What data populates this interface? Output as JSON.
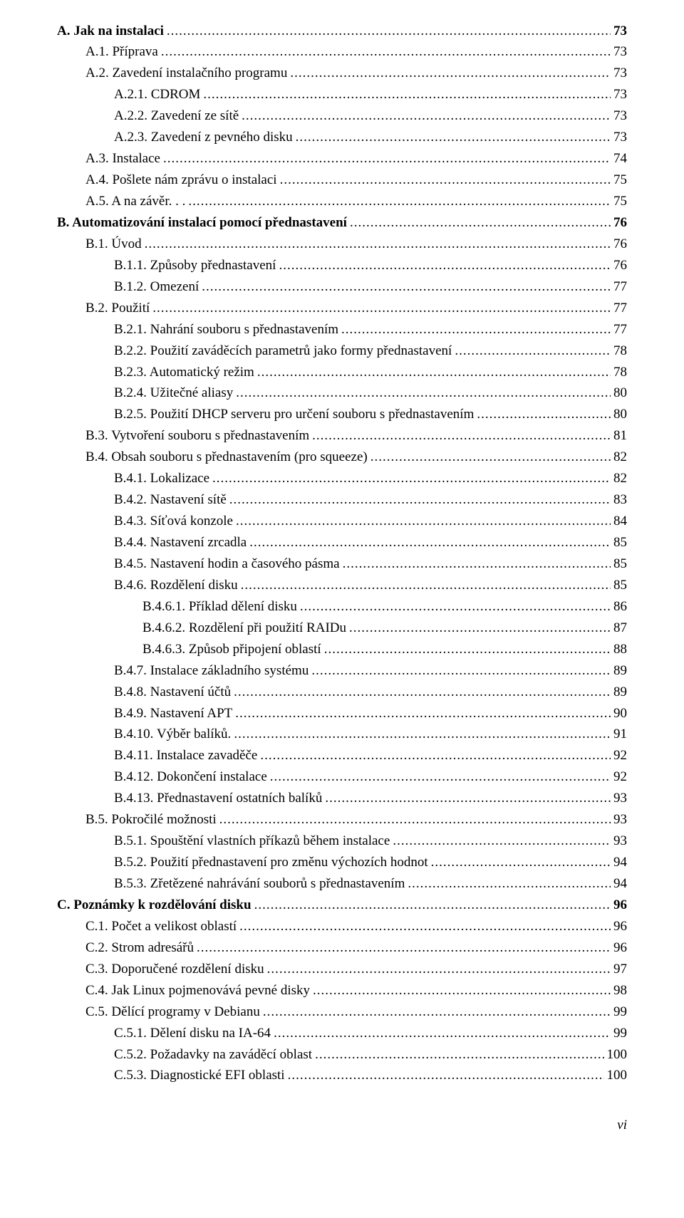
{
  "toc": [
    {
      "label": "A. Jak na instalaci",
      "page": "73",
      "indent": 0,
      "bold": true
    },
    {
      "label": "A.1. Příprava",
      "page": "73",
      "indent": 1,
      "bold": false
    },
    {
      "label": "A.2. Zavedení instalačního programu",
      "page": "73",
      "indent": 1,
      "bold": false
    },
    {
      "label": "A.2.1. CDROM",
      "page": "73",
      "indent": 2,
      "bold": false
    },
    {
      "label": "A.2.2. Zavedení ze sítě",
      "page": "73",
      "indent": 2,
      "bold": false
    },
    {
      "label": "A.2.3. Zavedení z pevného disku",
      "page": "73",
      "indent": 2,
      "bold": false
    },
    {
      "label": "A.3. Instalace",
      "page": "74",
      "indent": 1,
      "bold": false
    },
    {
      "label": "A.4. Pošlete nám zprávu o instalaci",
      "page": "75",
      "indent": 1,
      "bold": false
    },
    {
      "label": "A.5. A na závěr. . .",
      "page": "75",
      "indent": 1,
      "bold": false
    },
    {
      "label": "B. Automatizování instalací pomocí přednastavení",
      "page": "76",
      "indent": 0,
      "bold": true
    },
    {
      "label": "B.1. Úvod",
      "page": "76",
      "indent": 1,
      "bold": false
    },
    {
      "label": "B.1.1. Způsoby přednastavení",
      "page": "76",
      "indent": 2,
      "bold": false
    },
    {
      "label": "B.1.2. Omezení",
      "page": "77",
      "indent": 2,
      "bold": false
    },
    {
      "label": "B.2. Použití",
      "page": "77",
      "indent": 1,
      "bold": false
    },
    {
      "label": "B.2.1. Nahrání souboru s přednastavením",
      "page": "77",
      "indent": 2,
      "bold": false
    },
    {
      "label": "B.2.2. Použití zaváděcích parametrů jako formy přednastavení",
      "page": "78",
      "indent": 2,
      "bold": false
    },
    {
      "label": "B.2.3. Automatický režim",
      "page": "78",
      "indent": 2,
      "bold": false
    },
    {
      "label": "B.2.4. Užitečné aliasy",
      "page": "80",
      "indent": 2,
      "bold": false
    },
    {
      "label": "B.2.5. Použití DHCP serveru pro určení souboru s přednastavením",
      "page": "80",
      "indent": 2,
      "bold": false
    },
    {
      "label": "B.3. Vytvoření souboru s přednastavením",
      "page": "81",
      "indent": 1,
      "bold": false
    },
    {
      "label": "B.4. Obsah souboru s přednastavením (pro squeeze)",
      "page": "82",
      "indent": 1,
      "bold": false
    },
    {
      "label": "B.4.1. Lokalizace",
      "page": "82",
      "indent": 2,
      "bold": false
    },
    {
      "label": "B.4.2. Nastavení sítě",
      "page": "83",
      "indent": 2,
      "bold": false
    },
    {
      "label": "B.4.3. Síťová konzole",
      "page": "84",
      "indent": 2,
      "bold": false
    },
    {
      "label": "B.4.4. Nastavení zrcadla",
      "page": "85",
      "indent": 2,
      "bold": false
    },
    {
      "label": "B.4.5. Nastavení hodin a časového pásma",
      "page": "85",
      "indent": 2,
      "bold": false
    },
    {
      "label": "B.4.6. Rozdělení disku",
      "page": "85",
      "indent": 2,
      "bold": false
    },
    {
      "label": "B.4.6.1. Příklad dělení disku",
      "page": "86",
      "indent": 3,
      "bold": false
    },
    {
      "label": "B.4.6.2. Rozdělení při použití RAIDu",
      "page": "87",
      "indent": 3,
      "bold": false
    },
    {
      "label": "B.4.6.3. Způsob připojení oblastí",
      "page": "88",
      "indent": 3,
      "bold": false
    },
    {
      "label": "B.4.7. Instalace základního systému",
      "page": "89",
      "indent": 2,
      "bold": false
    },
    {
      "label": "B.4.8. Nastavení účtů",
      "page": "89",
      "indent": 2,
      "bold": false
    },
    {
      "label": "B.4.9. Nastavení APT",
      "page": "90",
      "indent": 2,
      "bold": false
    },
    {
      "label": "B.4.10. Výběr balíků.",
      "page": "91",
      "indent": 2,
      "bold": false
    },
    {
      "label": "B.4.11. Instalace zavaděče",
      "page": "92",
      "indent": 2,
      "bold": false
    },
    {
      "label": "B.4.12. Dokončení instalace",
      "page": "92",
      "indent": 2,
      "bold": false
    },
    {
      "label": "B.4.13. Přednastavení ostatních balíků",
      "page": "93",
      "indent": 2,
      "bold": false
    },
    {
      "label": "B.5. Pokročilé možnosti",
      "page": "93",
      "indent": 1,
      "bold": false
    },
    {
      "label": "B.5.1. Spouštění vlastních příkazů během instalace",
      "page": "93",
      "indent": 2,
      "bold": false
    },
    {
      "label": "B.5.2. Použití přednastavení pro změnu výchozích hodnot",
      "page": "94",
      "indent": 2,
      "bold": false
    },
    {
      "label": "B.5.3. Zřetězené nahrávání souborů s přednastavením",
      "page": "94",
      "indent": 2,
      "bold": false
    },
    {
      "label": "C. Poznámky k rozdělování disku",
      "page": "96",
      "indent": 0,
      "bold": true
    },
    {
      "label": "C.1. Počet a velikost oblastí",
      "page": "96",
      "indent": 1,
      "bold": false
    },
    {
      "label": "C.2. Strom adresářů",
      "page": "96",
      "indent": 1,
      "bold": false
    },
    {
      "label": "C.3. Doporučené rozdělení disku",
      "page": "97",
      "indent": 1,
      "bold": false
    },
    {
      "label": "C.4. Jak Linux pojmenovává pevné disky",
      "page": "98",
      "indent": 1,
      "bold": false
    },
    {
      "label": "C.5. Dělící programy v Debianu",
      "page": "99",
      "indent": 1,
      "bold": false
    },
    {
      "label": "C.5.1. Dělení disku na IA-64",
      "page": "99",
      "indent": 2,
      "bold": false
    },
    {
      "label": "C.5.2. Požadavky na zaváděcí oblast",
      "page": "100",
      "indent": 2,
      "bold": false
    },
    {
      "label": "C.5.3. Diagnostické EFI oblasti",
      "page": "100",
      "indent": 2,
      "bold": false
    }
  ],
  "footer": "vi"
}
